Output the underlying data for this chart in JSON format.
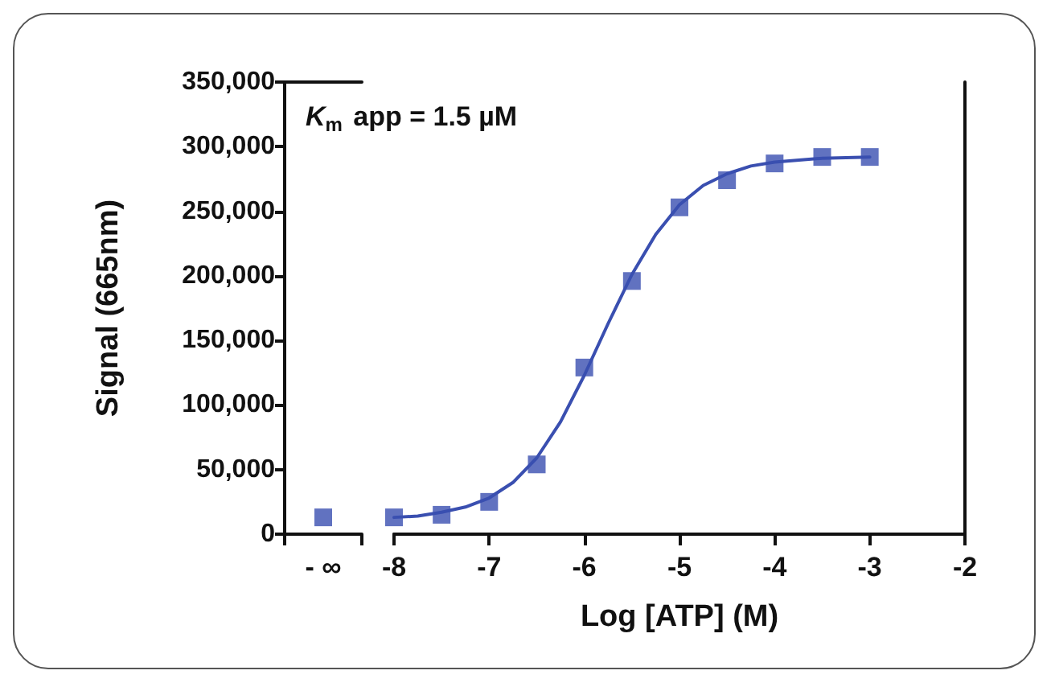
{
  "chart_data": [
    {
      "type": "scatter",
      "ylabel": "Signal (665nm)",
      "categories": [
        "- ∞"
      ],
      "ylim": [
        0,
        350000
      ],
      "yticks": [
        {
          "value": 0,
          "label": "0"
        },
        {
          "value": 50000,
          "label": "50,000"
        },
        {
          "value": 100000,
          "label": "100,000"
        },
        {
          "value": 150000,
          "label": "150,000"
        },
        {
          "value": 200000,
          "label": "200,000"
        },
        {
          "value": 250000,
          "label": "250,000"
        },
        {
          "value": 300000,
          "label": "300,000"
        },
        {
          "value": 350000,
          "label": "350,000"
        }
      ],
      "series": [
        {
          "marker": "square",
          "color": "#3a4fb0",
          "values": [
            13000
          ]
        }
      ]
    },
    {
      "type": "scatter",
      "xlabel": "Log [ATP] (M)",
      "annotations": [
        "K$_{m}$ app = 1.5 µM"
      ],
      "xlim": [
        -8,
        -2
      ],
      "xticks": [
        -8,
        -7,
        -6,
        -5,
        -4,
        -3,
        -2
      ],
      "ylim": [
        0,
        350000
      ],
      "tick_labels": "x",
      "series": [
        {
          "type": "line",
          "marker": "none",
          "color": "#3a4fb0",
          "x": [
            -8,
            -7.75,
            -7.5,
            -7.25,
            -7,
            -6.75,
            -6.5,
            -6.25,
            -6,
            -5.75,
            -5.5,
            -5.25,
            -5,
            -4.75,
            -4.5,
            -4.25,
            -4,
            -3.5,
            -3
          ],
          "values": [
            13000,
            14000,
            17000,
            21000,
            28000,
            40000,
            59000,
            87000,
            123000,
            163000,
            201000,
            232000,
            255000,
            270000,
            279000,
            285000,
            288000,
            291000,
            292000
          ]
        },
        {
          "marker": "square",
          "color": "#3a4fb0",
          "x": [
            -8,
            -7.5,
            -7,
            -6.5,
            -6,
            -5.5,
            -5,
            -4.5,
            -4,
            -3.5,
            -3
          ],
          "values": [
            13000,
            15000,
            25000,
            54000,
            129000,
            196000,
            253000,
            274000,
            287000,
            292000,
            292000
          ]
        }
      ]
    }
  ]
}
